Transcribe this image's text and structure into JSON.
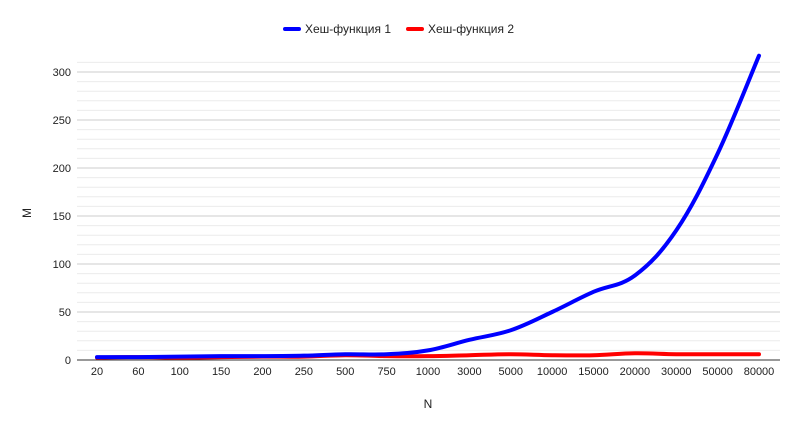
{
  "chart_data": {
    "type": "line",
    "title": "",
    "xlabel": "N",
    "ylabel": "M",
    "categories": [
      "20",
      "60",
      "100",
      "150",
      "200",
      "250",
      "500",
      "750",
      "1000",
      "3000",
      "5000",
      "10000",
      "15000",
      "20000",
      "30000",
      "50000",
      "80000"
    ],
    "series": [
      {
        "name": "Хеш-функция 1",
        "color": "#0000ff",
        "values": [
          3,
          3,
          3.5,
          4,
          4,
          4.5,
          6,
          6,
          10,
          21,
          31,
          50,
          71,
          88,
          135,
          215,
          317
        ]
      },
      {
        "name": "Хеш-функция 2",
        "color": "#ff0000",
        "values": [
          2.5,
          3,
          2.5,
          3,
          3.5,
          3.5,
          5,
          4,
          4,
          5,
          6,
          5,
          5,
          7,
          6,
          6,
          6
        ]
      }
    ],
    "ylim": [
      0,
      320
    ],
    "yticks": [
      0,
      50,
      100,
      150,
      200,
      250,
      300
    ],
    "grid": true,
    "minor_grid": true,
    "legend_position": "top-center"
  }
}
